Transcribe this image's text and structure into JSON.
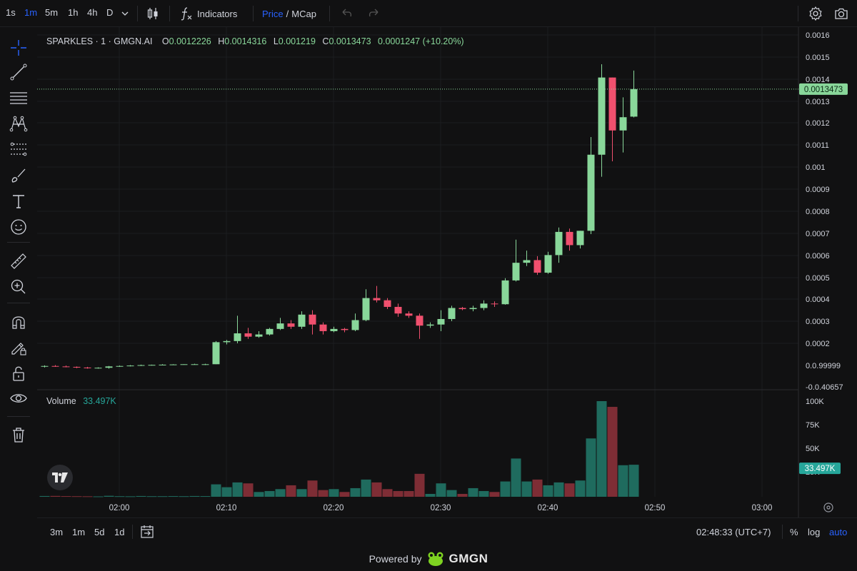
{
  "toolbar": {
    "timeframes": [
      "1s",
      "1m",
      "5m",
      "1h",
      "4h",
      "D"
    ],
    "active_timeframe": "1m",
    "indicators_label": "Indicators",
    "price_label": "Price",
    "slash": "/",
    "mcap_label": "MCap"
  },
  "legend": {
    "symbol": "SPARKLES · 1 · GMGN.AI",
    "open_key": "O",
    "open": "0.0012226",
    "high_key": "H",
    "high": "0.0014316",
    "low_key": "L",
    "low": "0.001219",
    "close_key": "C",
    "close": "0.0013473",
    "change": "0.0001247 (+10.20%)"
  },
  "volume_legend": {
    "label": "Volume",
    "value": "33.497K"
  },
  "bottom": {
    "ranges": [
      "3m",
      "1m",
      "5d",
      "1d"
    ],
    "clock": "02:48:33 (UTC+7)",
    "percent": "%",
    "log": "log",
    "auto": "auto"
  },
  "footer": {
    "powered_by": "Powered by",
    "brand": "GMGN"
  },
  "colors": {
    "up": "#89d79a",
    "down": "#f0506e",
    "vol_up": "#1f6b5e",
    "vol_down": "#7e2d35",
    "accent": "#2962ff",
    "last_price_tag": "#89d79a"
  },
  "chart_data": {
    "type": "candlestick",
    "price_axis_labels": [
      "0.0016",
      "0.0015",
      "0.0014",
      "0.0013",
      "0.0012",
      "0.0011",
      "0.001",
      "0.0009",
      "0.0008",
      "0.0007",
      "0.0006",
      "0.0005",
      "0.0004",
      "0.0003",
      "0.0002",
      "0.0.99999",
      "-0.0.40657"
    ],
    "time_axis_labels": [
      "02:00",
      "02:10",
      "02:20",
      "02:30",
      "02:40",
      "02:50",
      "03:00"
    ],
    "volume_axis_labels": [
      "100K",
      "75K",
      "50K",
      "25K"
    ],
    "last_price": "0.0013473",
    "last_volume": "33.497K",
    "ylim": [
      0.0,
      0.0016
    ],
    "volume_max": 100000,
    "time_start": "01:54",
    "bar_minutes": 1,
    "candles": [
      {
        "t": "01:54",
        "o": 9e-05,
        "h": 9.5e-05,
        "l": 8.5e-05,
        "c": 9.2e-05,
        "v": 800
      },
      {
        "t": "01:55",
        "o": 9.2e-05,
        "h": 9.6e-05,
        "l": 8.8e-05,
        "c": 9e-05,
        "v": 900
      },
      {
        "t": "01:56",
        "o": 9e-05,
        "h": 9.4e-05,
        "l": 8.6e-05,
        "c": 8.8e-05,
        "v": 700
      },
      {
        "t": "01:57",
        "o": 8.8e-05,
        "h": 9e-05,
        "l": 8.2e-05,
        "c": 8.5e-05,
        "v": 600
      },
      {
        "t": "01:58",
        "o": 8.5e-05,
        "h": 8.8e-05,
        "l": 8e-05,
        "c": 8.2e-05,
        "v": 500
      },
      {
        "t": "01:59",
        "o": 8.2e-05,
        "h": 8.6e-05,
        "l": 8e-05,
        "c": 8.4e-05,
        "v": 400
      },
      {
        "t": "02:00",
        "o": 8.4e-05,
        "h": 9.2e-05,
        "l": 8e-05,
        "c": 9e-05,
        "v": 1000
      },
      {
        "t": "02:01",
        "o": 9e-05,
        "h": 9.4e-05,
        "l": 8.8e-05,
        "c": 9.2e-05,
        "v": 600
      },
      {
        "t": "02:02",
        "o": 9.2e-05,
        "h": 9.6e-05,
        "l": 9e-05,
        "c": 9.4e-05,
        "v": 500
      },
      {
        "t": "02:03",
        "o": 9.4e-05,
        "h": 9.8e-05,
        "l": 9.2e-05,
        "c": 9.6e-05,
        "v": 800
      },
      {
        "t": "02:04",
        "o": 9.6e-05,
        "h": 9.8e-05,
        "l": 9.4e-05,
        "c": 9.7e-05,
        "v": 600
      },
      {
        "t": "02:05",
        "o": 9.7e-05,
        "h": 0.0001,
        "l": 9.6e-05,
        "c": 9.8e-05,
        "v": 600
      },
      {
        "t": "02:06",
        "o": 9.8e-05,
        "h": 0.0001,
        "l": 9.7e-05,
        "c": 9.9e-05,
        "v": 700
      },
      {
        "t": "02:07",
        "o": 9.9e-05,
        "h": 0.0001,
        "l": 9.8e-05,
        "c": 0.0001,
        "v": 600
      },
      {
        "t": "02:08",
        "o": 0.0001,
        "h": 0.000102,
        "l": 9.8e-05,
        "c": 0.0001,
        "v": 800
      },
      {
        "t": "02:09",
        "o": 9.8e-05,
        "h": 0.000102,
        "l": 9.6e-05,
        "c": 0.0001,
        "v": 700
      },
      {
        "t": "02:10",
        "o": 0.0001,
        "h": 0.000205,
        "l": 0.0001,
        "c": 0.0002,
        "v": 13000
      },
      {
        "t": "02:11",
        "o": 0.0002,
        "h": 0.00021,
        "l": 0.00019,
        "c": 0.000205,
        "v": 10000
      },
      {
        "t": "02:12",
        "o": 0.000205,
        "h": 0.00032,
        "l": 0.000195,
        "c": 0.00024,
        "v": 15000
      },
      {
        "t": "02:13",
        "o": 0.00024,
        "h": 0.000265,
        "l": 0.000215,
        "c": 0.000225,
        "v": 14000
      },
      {
        "t": "02:14",
        "o": 0.000225,
        "h": 0.00025,
        "l": 0.00022,
        "c": 0.000235,
        "v": 5000
      },
      {
        "t": "02:15",
        "o": 0.000235,
        "h": 0.000265,
        "l": 0.00023,
        "c": 0.00026,
        "v": 6000
      },
      {
        "t": "02:16",
        "o": 0.00026,
        "h": 0.00031,
        "l": 0.000255,
        "c": 0.000285,
        "v": 8000
      },
      {
        "t": "02:17",
        "o": 0.000285,
        "h": 0.0003,
        "l": 0.00026,
        "c": 0.00027,
        "v": 12000
      },
      {
        "t": "02:18",
        "o": 0.00027,
        "h": 0.00034,
        "l": 0.00026,
        "c": 0.000325,
        "v": 8000
      },
      {
        "t": "02:19",
        "o": 0.000325,
        "h": 0.000345,
        "l": 0.000235,
        "c": 0.00028,
        "v": 17000
      },
      {
        "t": "02:20",
        "o": 0.00028,
        "h": 0.00029,
        "l": 0.000235,
        "c": 0.00025,
        "v": 7000
      },
      {
        "t": "02:21",
        "o": 0.00025,
        "h": 0.00027,
        "l": 0.000245,
        "c": 0.00026,
        "v": 8000
      },
      {
        "t": "02:22",
        "o": 0.00026,
        "h": 0.000265,
        "l": 0.000245,
        "c": 0.000255,
        "v": 5000
      },
      {
        "t": "02:23",
        "o": 0.000255,
        "h": 0.00033,
        "l": 0.00025,
        "c": 0.0003,
        "v": 9000
      },
      {
        "t": "02:24",
        "o": 0.0003,
        "h": 0.00044,
        "l": 0.000295,
        "c": 0.0004,
        "v": 18000
      },
      {
        "t": "02:25",
        "o": 0.0004,
        "h": 0.000455,
        "l": 0.00038,
        "c": 0.00039,
        "v": 15000
      },
      {
        "t": "02:26",
        "o": 0.00039,
        "h": 0.0004,
        "l": 0.00035,
        "c": 0.00036,
        "v": 8000
      },
      {
        "t": "02:27",
        "o": 0.00036,
        "h": 0.000375,
        "l": 0.000315,
        "c": 0.00033,
        "v": 6000
      },
      {
        "t": "02:28",
        "o": 0.00033,
        "h": 0.00034,
        "l": 0.00031,
        "c": 0.00032,
        "v": 6000
      },
      {
        "t": "02:29",
        "o": 0.00032,
        "h": 0.00033,
        "l": 0.000215,
        "c": 0.000275,
        "v": 24000
      },
      {
        "t": "02:30",
        "o": 0.000275,
        "h": 0.00029,
        "l": 0.000265,
        "c": 0.00028,
        "v": 3000
      },
      {
        "t": "02:31",
        "o": 0.00028,
        "h": 0.000345,
        "l": 0.00025,
        "c": 0.000305,
        "v": 14000
      },
      {
        "t": "02:32",
        "o": 0.000305,
        "h": 0.000365,
        "l": 0.000295,
        "c": 0.000355,
        "v": 7000
      },
      {
        "t": "02:33",
        "o": 0.000355,
        "h": 0.00036,
        "l": 0.000345,
        "c": 0.00035,
        "v": 3000
      },
      {
        "t": "02:34",
        "o": 0.00035,
        "h": 0.000365,
        "l": 0.00034,
        "c": 0.000355,
        "v": 9000
      },
      {
        "t": "02:35",
        "o": 0.000355,
        "h": 0.00039,
        "l": 0.000345,
        "c": 0.000375,
        "v": 6000
      },
      {
        "t": "02:36",
        "o": 0.000375,
        "h": 0.000385,
        "l": 0.00036,
        "c": 0.000372,
        "v": 5000
      },
      {
        "t": "02:37",
        "o": 0.000372,
        "h": 0.00049,
        "l": 0.00037,
        "c": 0.00048,
        "v": 16000
      },
      {
        "t": "02:38",
        "o": 0.00048,
        "h": 0.000665,
        "l": 0.000475,
        "c": 0.00056,
        "v": 40000
      },
      {
        "t": "02:39",
        "o": 0.00056,
        "h": 0.000615,
        "l": 0.000545,
        "c": 0.000572,
        "v": 16000
      },
      {
        "t": "02:40",
        "o": 0.000572,
        "h": 0.00059,
        "l": 0.000505,
        "c": 0.000515,
        "v": 18000
      },
      {
        "t": "02:41",
        "o": 0.000515,
        "h": 0.00061,
        "l": 0.00051,
        "c": 0.000595,
        "v": 12000
      },
      {
        "t": "02:42",
        "o": 0.000595,
        "h": 0.00072,
        "l": 0.00056,
        "c": 0.0007,
        "v": 15000
      },
      {
        "t": "02:43",
        "o": 0.0007,
        "h": 0.000715,
        "l": 0.000615,
        "c": 0.00064,
        "v": 14000
      },
      {
        "t": "02:44",
        "o": 0.00064,
        "h": 0.000705,
        "l": 0.000625,
        "c": 0.000705,
        "v": 17000
      },
      {
        "t": "02:45",
        "o": 0.000705,
        "h": 0.00113,
        "l": 0.00069,
        "c": 0.00105,
        "v": 61000
      },
      {
        "t": "02:46",
        "o": 0.00105,
        "h": 0.00146,
        "l": 0.00095,
        "c": 0.0014,
        "v": 100000
      },
      {
        "t": "02:47",
        "o": 0.0014,
        "h": 0.0014,
        "l": 0.00102,
        "c": 0.00116,
        "v": 94000
      },
      {
        "t": "02:48",
        "o": 0.00116,
        "h": 0.00131,
        "l": 0.00106,
        "c": 0.00122,
        "v": 33000
      },
      {
        "t": "02:49",
        "o": 0.0012226,
        "h": 0.0014316,
        "l": 0.001219,
        "c": 0.0013473,
        "v": 33497
      }
    ]
  }
}
